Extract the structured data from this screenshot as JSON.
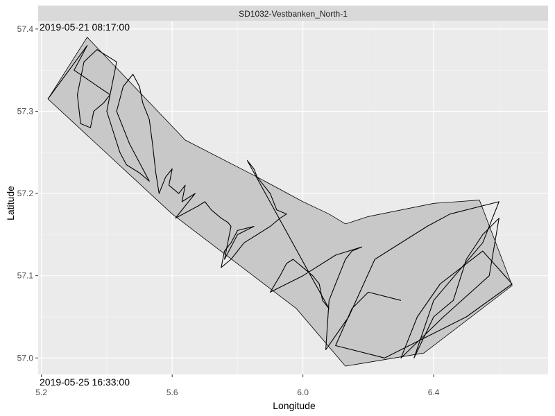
{
  "chart_data": {
    "type": "line",
    "panel_title": "SD1032-Vestbanken_North-1",
    "xlabel": "Longitude",
    "ylabel": "Latitude",
    "xlim": [
      5.19,
      6.75
    ],
    "ylim": [
      56.98,
      57.41
    ],
    "x_ticks": [
      5.2,
      5.6,
      6.0,
      6.4
    ],
    "x_minor_ticks": [
      5.4,
      5.8,
      6.2,
      6.6
    ],
    "y_ticks": [
      57.0,
      57.1,
      57.2,
      57.3,
      57.4
    ],
    "y_minor_ticks": [
      57.05,
      57.15,
      57.25,
      57.35
    ],
    "start_time": "2019-05-21 08:17:00",
    "end_time": "2019-05-25 16:33:00",
    "survey_area": {
      "lon": [
        5.22,
        5.34,
        5.64,
        5.86,
        6.0,
        6.08,
        6.13,
        6.2,
        6.4,
        6.54,
        6.64,
        6.37,
        6.13,
        5.98,
        5.6,
        5.22
      ],
      "lat": [
        57.315,
        57.39,
        57.265,
        57.22,
        57.19,
        57.175,
        57.163,
        57.172,
        57.188,
        57.192,
        57.088,
        57.006,
        56.99,
        57.06,
        57.175,
        57.315
      ]
    },
    "track": {
      "lon": [
        5.22,
        5.34,
        5.3,
        5.41,
        5.39,
        5.36,
        5.35,
        5.32,
        5.31,
        5.33,
        5.37,
        5.43,
        5.4,
        5.44,
        5.46,
        5.5,
        5.53,
        5.51,
        5.47,
        5.43,
        5.45,
        5.47,
        5.48,
        5.5,
        5.51,
        5.53,
        5.54,
        5.55,
        5.56,
        5.58,
        5.6,
        5.59,
        5.62,
        5.64,
        5.63,
        5.67,
        5.61,
        5.68,
        5.7,
        5.72,
        5.75,
        5.77,
        5.78,
        5.76,
        5.8,
        5.85,
        5.8,
        5.78,
        5.76,
        5.75,
        5.78,
        5.8,
        5.82,
        5.86,
        5.9,
        5.93,
        5.95,
        5.92,
        5.91,
        5.9,
        5.88,
        5.86,
        5.85,
        5.83,
        6.01,
        6.08,
        6.06,
        6.05,
        6.03,
        6.0,
        5.97,
        5.95,
        5.93,
        5.9,
        6.0,
        6.1,
        6.18,
        6.15,
        6.13,
        6.12,
        6.1,
        6.08,
        6.07,
        6.14,
        6.22,
        6.38,
        6.45,
        6.6,
        6.55,
        6.4,
        6.34,
        6.4,
        6.43,
        6.46,
        6.5,
        6.55,
        6.6,
        6.57,
        6.43,
        6.3,
        6.35,
        6.42,
        6.55,
        6.64,
        6.5,
        6.25,
        6.1,
        6.15,
        6.2,
        6.3
      ],
      "lat": [
        57.315,
        57.38,
        57.35,
        57.32,
        57.31,
        57.3,
        57.28,
        57.285,
        57.32,
        57.36,
        57.375,
        57.36,
        57.3,
        57.25,
        57.235,
        57.225,
        57.215,
        57.23,
        57.26,
        57.3,
        57.33,
        57.34,
        57.345,
        57.33,
        57.31,
        57.29,
        57.26,
        57.225,
        57.2,
        57.22,
        57.23,
        57.21,
        57.2,
        57.21,
        57.19,
        57.2,
        57.17,
        57.185,
        57.19,
        57.18,
        57.17,
        57.165,
        57.16,
        57.12,
        57.15,
        57.16,
        57.155,
        57.14,
        57.13,
        57.11,
        57.12,
        57.13,
        57.14,
        57.15,
        57.16,
        57.17,
        57.175,
        57.18,
        57.19,
        57.2,
        57.21,
        57.22,
        57.23,
        57.24,
        57.11,
        57.06,
        57.07,
        57.09,
        57.1,
        57.11,
        57.12,
        57.115,
        57.1,
        57.08,
        57.1,
        57.125,
        57.135,
        57.13,
        57.12,
        57.11,
        57.09,
        57.07,
        57.01,
        57.05,
        57.12,
        57.16,
        57.175,
        57.19,
        57.14,
        57.07,
        57.0,
        57.05,
        57.06,
        57.07,
        57.12,
        57.15,
        57.17,
        57.1,
        57.05,
        57.0,
        57.05,
        57.09,
        57.13,
        57.09,
        57.05,
        57.0,
        57.015,
        57.06,
        57.08,
        57.07
      ]
    }
  }
}
